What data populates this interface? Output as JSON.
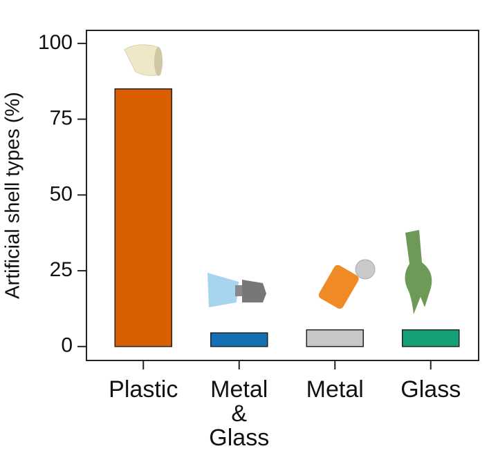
{
  "chart_data": {
    "type": "bar",
    "y_label": "Artificial shell types (%)",
    "categories": [
      "Plastic",
      "Metal & Glass",
      "Metal",
      "Glass"
    ],
    "values": [
      85,
      4.5,
      5.5,
      5.5
    ],
    "colors": [
      "#d95f02",
      "#1470b4",
      "#c8c8c8",
      "#16a078"
    ],
    "ylim": [
      -4.6,
      104.3
    ],
    "yticks": [
      0,
      25,
      50,
      75,
      100
    ],
    "grid": false
  }
}
